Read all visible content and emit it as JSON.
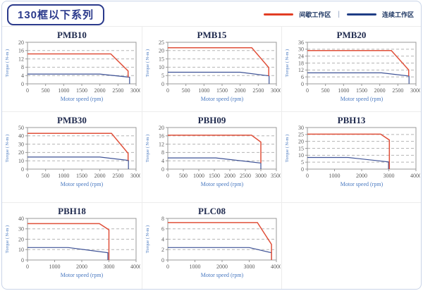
{
  "header": {
    "title": "130框以下系列",
    "legend": {
      "intermittent": "间歇工作区",
      "separator": "|",
      "continuous": "连续工作区"
    }
  },
  "colors": {
    "intermittent_red": "#e0503a",
    "continuous_blue": "#3e5296",
    "legend_red": "#e23d24",
    "legend_blue": "#1f3d85",
    "gridline": "#b5b5b5",
    "plot_border": "#999999",
    "tick_text": "#5a5a5a",
    "axis_label_blue": "#4878c0",
    "chart_title": "#1f2a4e",
    "frame_border": "#c9d4e8"
  },
  "chart_data": [
    {
      "type": "line",
      "title": "PMB10",
      "xlabel": "Motor speed (rpm)",
      "ylabel": "Torque ( N-m )",
      "xlim": [
        0,
        3000
      ],
      "ylim": [
        0,
        20
      ],
      "xticks": [
        0,
        500,
        1000,
        1500,
        2000,
        2500,
        3000
      ],
      "yticks": [
        0,
        4,
        8,
        12,
        16,
        20
      ],
      "series": {
        "intermittent": [
          [
            0,
            14.4
          ],
          [
            2300,
            14.4
          ],
          [
            2780,
            6.2
          ],
          [
            2780,
            3.2
          ]
        ],
        "continuous": [
          [
            0,
            4.7
          ],
          [
            2000,
            4.7
          ],
          [
            2820,
            3.2
          ],
          [
            2820,
            0
          ]
        ]
      }
    },
    {
      "type": "line",
      "title": "PMB15",
      "xlabel": "Motor speed (rpm)",
      "ylabel": "Torque ( N-m )",
      "xlim": [
        0,
        3000
      ],
      "ylim": [
        0,
        25
      ],
      "xticks": [
        0,
        500,
        1000,
        1500,
        2000,
        2500,
        3000
      ],
      "yticks": [
        0,
        5,
        10,
        15,
        20,
        25
      ],
      "series": {
        "intermittent": [
          [
            0,
            21.7
          ],
          [
            2320,
            21.7
          ],
          [
            2790,
            9.8
          ],
          [
            2790,
            4.8
          ]
        ],
        "continuous": [
          [
            0,
            7
          ],
          [
            2000,
            7
          ],
          [
            2800,
            4.8
          ],
          [
            2800,
            0
          ]
        ]
      }
    },
    {
      "type": "line",
      "title": "PMB20",
      "xlabel": "Motor speed (rpm)",
      "ylabel": "Torque ( N-m )",
      "xlim": [
        0,
        3000
      ],
      "ylim": [
        0,
        36
      ],
      "xticks": [
        0,
        500,
        1000,
        1500,
        2000,
        2500,
        3000
      ],
      "yticks": [
        0,
        6,
        12,
        18,
        24,
        30,
        36
      ],
      "series": {
        "intermittent": [
          [
            0,
            28.8
          ],
          [
            2320,
            28.8
          ],
          [
            2800,
            12
          ],
          [
            2800,
            6.8
          ]
        ],
        "continuous": [
          [
            0,
            9.5
          ],
          [
            2050,
            9.5
          ],
          [
            2810,
            6.8
          ],
          [
            2810,
            0
          ]
        ]
      }
    },
    {
      "type": "line",
      "title": "PMB30",
      "xlabel": "Motor speed (rpm)",
      "ylabel": "Torque ( N-m )",
      "xlim": [
        0,
        3000
      ],
      "ylim": [
        0,
        50
      ],
      "xticks": [
        0,
        500,
        1000,
        1500,
        2000,
        2500,
        3000
      ],
      "yticks": [
        0,
        10,
        20,
        30,
        40,
        50
      ],
      "series": {
        "intermittent": [
          [
            0,
            43
          ],
          [
            2320,
            43
          ],
          [
            2780,
            19
          ],
          [
            2780,
            10.5
          ]
        ],
        "continuous": [
          [
            0,
            14.5
          ],
          [
            2000,
            14.5
          ],
          [
            2790,
            10.5
          ],
          [
            2790,
            0
          ]
        ]
      }
    },
    {
      "type": "line",
      "title": "PBH09",
      "xlabel": "Motor speed (rpm)",
      "ylabel": "Torque ( N-m )",
      "xlim": [
        0,
        3500
      ],
      "ylim": [
        0,
        20
      ],
      "xticks": [
        0,
        500,
        1000,
        1500,
        2000,
        2500,
        3000,
        3500
      ],
      "yticks": [
        0,
        4,
        8,
        12,
        16,
        20
      ],
      "series": {
        "intermittent": [
          [
            0,
            16.3
          ],
          [
            2700,
            16.3
          ],
          [
            3000,
            13
          ],
          [
            3000,
            2.9
          ]
        ],
        "continuous": [
          [
            0,
            5.4
          ],
          [
            1550,
            5.4
          ],
          [
            3000,
            2.9
          ],
          [
            3000,
            0
          ]
        ]
      }
    },
    {
      "type": "line",
      "title": "PBH13",
      "xlabel": "Motor speed (rpm)",
      "ylabel": "Torque ( N-m )",
      "xlim": [
        0,
        4000
      ],
      "ylim": [
        0,
        30
      ],
      "xticks": [
        0,
        1000,
        2000,
        3000,
        4000
      ],
      "yticks": [
        0,
        5,
        10,
        15,
        20,
        25,
        30
      ],
      "series": {
        "intermittent": [
          [
            0,
            25.2
          ],
          [
            2700,
            25.2
          ],
          [
            3020,
            21
          ],
          [
            3020,
            0
          ]
        ],
        "continuous": [
          [
            0,
            8.4
          ],
          [
            1500,
            8.4
          ],
          [
            2990,
            5.2
          ],
          [
            2990,
            0
          ]
        ]
      }
    },
    {
      "type": "line",
      "title": "PBH18",
      "xlabel": "Motor speed (rpm)",
      "ylabel": "Torque ( N-m )",
      "xlim": [
        0,
        4000
      ],
      "ylim": [
        0,
        40
      ],
      "xticks": [
        0,
        1000,
        2000,
        3000,
        4000
      ],
      "yticks": [
        0,
        10,
        20,
        30,
        40
      ],
      "series": {
        "intermittent": [
          [
            0,
            35
          ],
          [
            2650,
            35
          ],
          [
            3000,
            29
          ],
          [
            3000,
            0
          ]
        ],
        "continuous": [
          [
            0,
            12
          ],
          [
            1500,
            12
          ],
          [
            2960,
            7
          ],
          [
            2960,
            0
          ]
        ]
      }
    },
    {
      "type": "line",
      "title": "PLC08",
      "xlabel": "Motor speed (rpm)",
      "ylabel": "Torque ( N-m )",
      "xlim": [
        0,
        4000
      ],
      "ylim": [
        0,
        8
      ],
      "xticks": [
        0,
        1000,
        2000,
        3000,
        4000
      ],
      "yticks": [
        0,
        2,
        4,
        6,
        8
      ],
      "series": {
        "intermittent": [
          [
            0,
            7.2
          ],
          [
            3300,
            7.2
          ],
          [
            3820,
            3
          ],
          [
            3820,
            0
          ]
        ],
        "continuous": [
          [
            0,
            2.4
          ],
          [
            3000,
            2.4
          ],
          [
            3820,
            1.4
          ],
          [
            3820,
            0
          ]
        ]
      }
    }
  ]
}
